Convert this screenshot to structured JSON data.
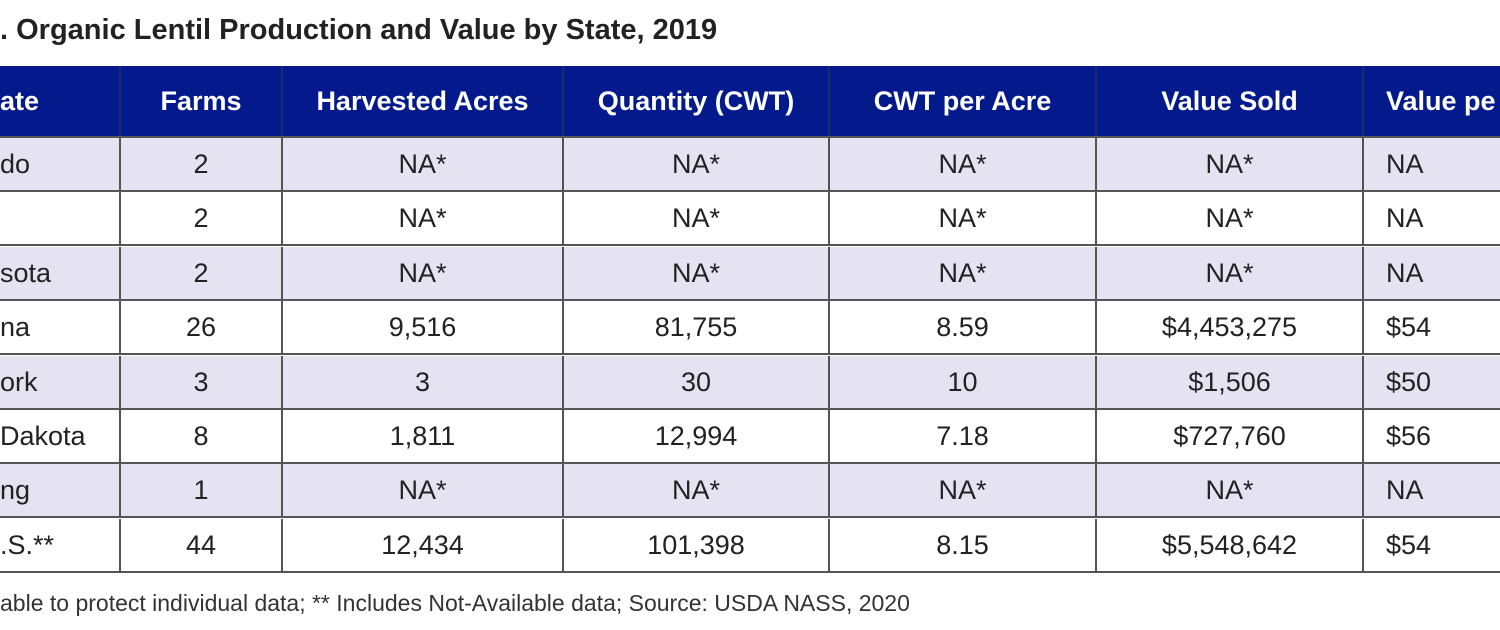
{
  "title": ". Organic Lentil Production and Value by State, 2019",
  "table": {
    "header_bg": "#041a8c",
    "alt_row_bg": "#e5e3f2",
    "columns": [
      "ate",
      "Farms",
      "Harvested Acres",
      "Quantity (CWT)",
      "CWT per Acre",
      "Value Sold",
      "Value pe"
    ],
    "rows": [
      [
        "do",
        "2",
        "NA*",
        "NA*",
        "NA*",
        "NA*",
        "NA"
      ],
      [
        "",
        "2",
        "NA*",
        "NA*",
        "NA*",
        "NA*",
        "NA"
      ],
      [
        "sota",
        "2",
        "NA*",
        "NA*",
        "NA*",
        "NA*",
        "NA"
      ],
      [
        "na",
        "26",
        "9,516",
        "81,755",
        "8.59",
        "$4,453,275",
        "$54"
      ],
      [
        "ork",
        "3",
        "3",
        "30",
        "10",
        "$1,506",
        "$50"
      ],
      [
        "Dakota",
        "8",
        "1,811",
        "12,994",
        "7.18",
        "$727,760",
        "$56"
      ],
      [
        "ng",
        "1",
        "NA*",
        "NA*",
        "NA*",
        "NA*",
        "NA"
      ],
      [
        ".S.**",
        "44",
        "12,434",
        "101,398",
        "8.15",
        "$5,548,642",
        "$54"
      ]
    ]
  },
  "footnote": "able to protect individual data;  ** Includes Not-Available data;  Source: USDA NASS, 2020"
}
